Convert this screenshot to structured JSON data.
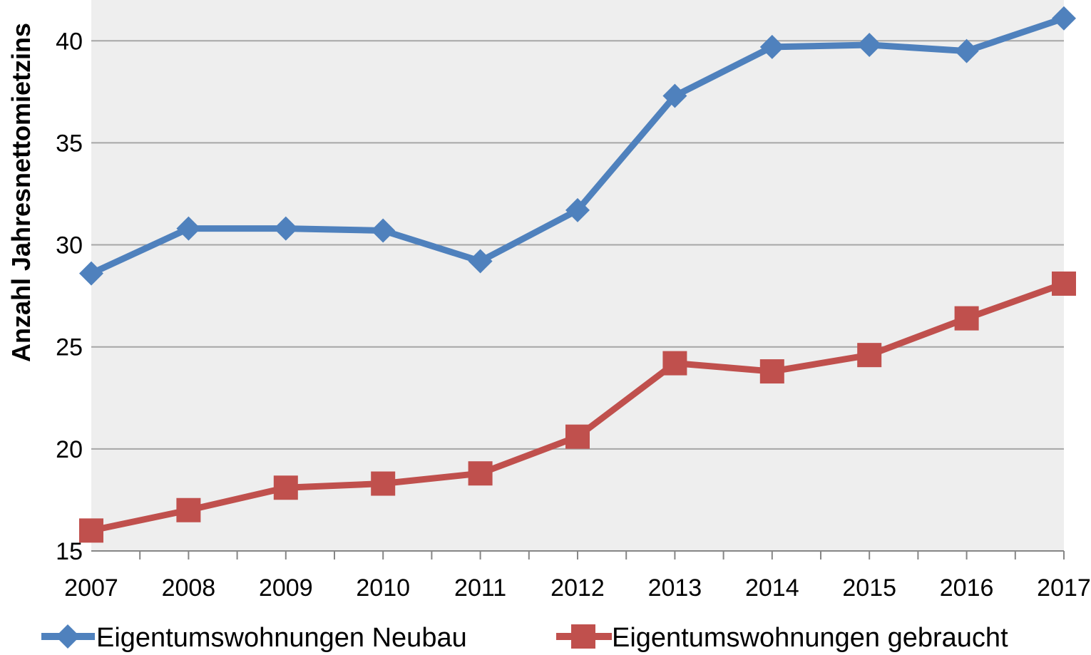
{
  "chart_data": {
    "type": "line",
    "title": "",
    "xlabel": "",
    "ylabel": "Anzahl Jahresnettomietzins",
    "categories": [
      "2007",
      "2008",
      "2009",
      "2010",
      "2011",
      "2012",
      "2013",
      "2014",
      "2015",
      "2016",
      "2017"
    ],
    "ylim": [
      15,
      42
    ],
    "yticks": [
      15,
      20,
      25,
      30,
      35,
      40
    ],
    "grid": true,
    "legend_position": "bottom",
    "series": [
      {
        "name": "Eigentumswohnungen Neubau",
        "color": "#4f81bd",
        "marker": "diamond",
        "values": [
          28.6,
          30.8,
          30.8,
          30.7,
          29.2,
          31.7,
          37.3,
          39.7,
          39.8,
          39.5,
          41.1
        ]
      },
      {
        "name": "Eigentumswohnungen gebraucht",
        "color": "#c0504d",
        "marker": "square",
        "values": [
          16.0,
          17.0,
          18.1,
          18.3,
          18.8,
          20.6,
          24.2,
          23.8,
          24.6,
          26.4,
          28.1
        ]
      }
    ]
  }
}
